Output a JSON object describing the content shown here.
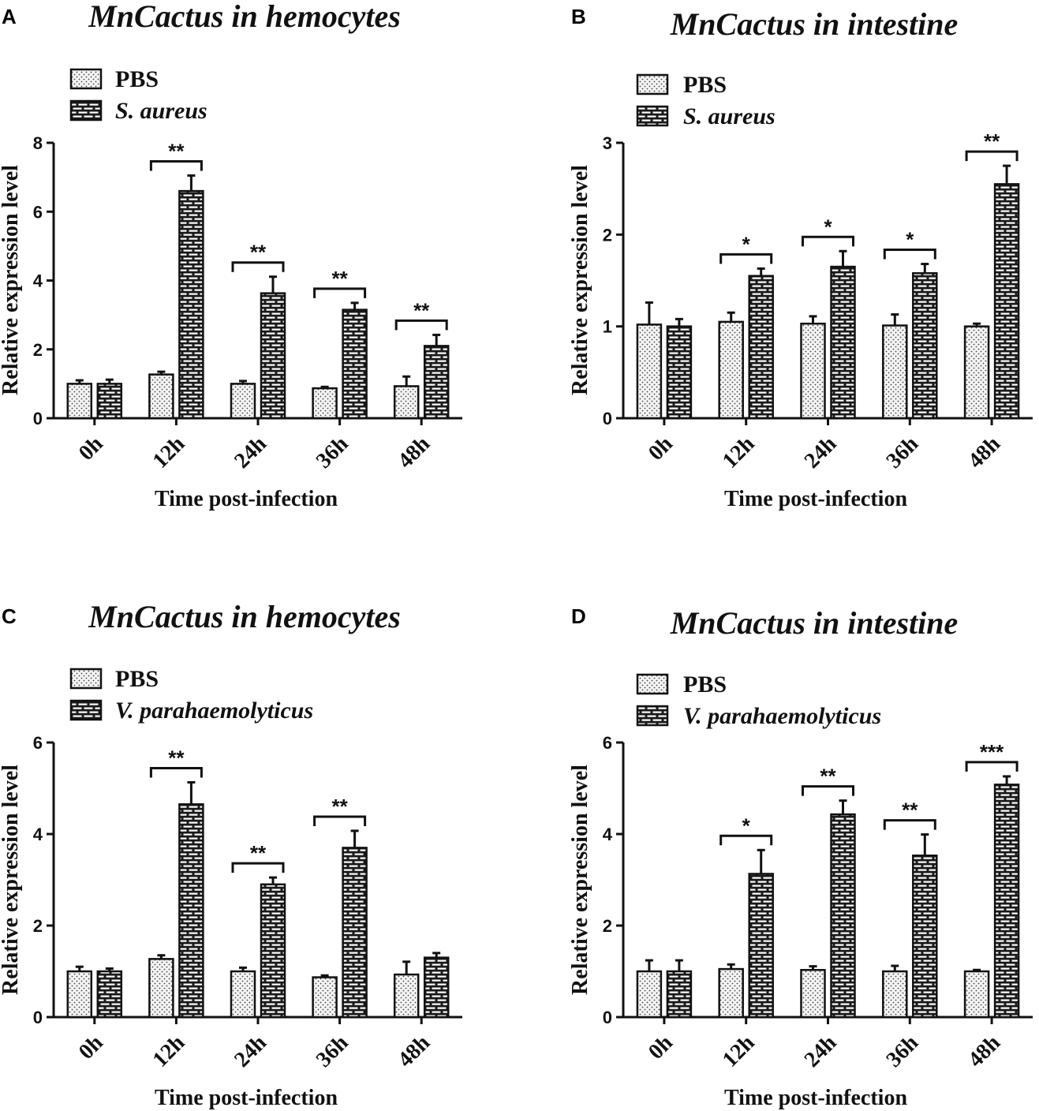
{
  "figure_colors": {
    "ink": "#111111",
    "pbs_fill": "#f2f2f2",
    "treated_fill": "#1a1a1a"
  },
  "chart_data": [
    {
      "panel": "A",
      "type": "bar",
      "title": "MnCactus in hemocytes",
      "xlabel": "Time post-infection",
      "ylabel": "Relative expression level",
      "categories": [
        "0h",
        "12h",
        "24h",
        "36h",
        "48h"
      ],
      "ylim": [
        0,
        8
      ],
      "yticks": [
        "0",
        "2",
        "4",
        "6",
        "8"
      ],
      "legend": [
        "PBS",
        "S. aureus"
      ],
      "series": [
        {
          "name": "PBS",
          "values": [
            1.0,
            1.27,
            1.0,
            0.87,
            0.93
          ],
          "errors": [
            0.1,
            0.08,
            0.08,
            0.04,
            0.28
          ]
        },
        {
          "name": "S. aureus",
          "values": [
            1.0,
            6.6,
            3.63,
            3.15,
            2.1
          ],
          "errors": [
            0.12,
            0.45,
            0.48,
            0.2,
            0.32
          ]
        }
      ],
      "significance": [
        "",
        "**",
        "**",
        "**",
        "**"
      ]
    },
    {
      "panel": "B",
      "type": "bar",
      "title": "MnCactus in intestine",
      "xlabel": "Time post-infection",
      "ylabel": "Relative expression level",
      "categories": [
        "0h",
        "12h",
        "24h",
        "36h",
        "48h"
      ],
      "ylim": [
        0,
        3
      ],
      "yticks": [
        "0",
        "1",
        "2",
        "3"
      ],
      "legend": [
        "PBS",
        "S. aureus"
      ],
      "series": [
        {
          "name": "PBS",
          "values": [
            1.02,
            1.05,
            1.03,
            1.01,
            1.0
          ],
          "errors": [
            0.24,
            0.1,
            0.08,
            0.12,
            0.03
          ]
        },
        {
          "name": "S. aureus",
          "values": [
            1.0,
            1.55,
            1.65,
            1.58,
            2.55
          ],
          "errors": [
            0.08,
            0.08,
            0.17,
            0.1,
            0.2
          ]
        }
      ],
      "significance": [
        "",
        "*",
        "*",
        "*",
        "**"
      ]
    },
    {
      "panel": "C",
      "type": "bar",
      "title": "MnCactus in hemocytes",
      "xlabel": "Time post-infection",
      "ylabel": "Relative expression level",
      "categories": [
        "0h",
        "12h",
        "24h",
        "36h",
        "48h"
      ],
      "ylim": [
        0,
        6
      ],
      "yticks": [
        "0",
        "2",
        "4",
        "6"
      ],
      "legend": [
        "PBS",
        "V. parahaemolyticus"
      ],
      "series": [
        {
          "name": "PBS",
          "values": [
            1.0,
            1.27,
            1.0,
            0.87,
            0.93
          ],
          "errors": [
            0.1,
            0.08,
            0.08,
            0.04,
            0.28
          ]
        },
        {
          "name": "V. parahaemolyticus",
          "values": [
            1.0,
            4.65,
            2.9,
            3.7,
            1.3
          ],
          "errors": [
            0.06,
            0.48,
            0.15,
            0.37,
            0.1
          ]
        }
      ],
      "significance": [
        "",
        "**",
        "**",
        "**",
        ""
      ]
    },
    {
      "panel": "D",
      "type": "bar",
      "title": "MnCactus in intestine",
      "xlabel": "Time post-infection",
      "ylabel": "Relative expression level",
      "categories": [
        "0h",
        "12h",
        "24h",
        "36h",
        "48h"
      ],
      "ylim": [
        0,
        6
      ],
      "yticks": [
        "0",
        "2",
        "4",
        "6"
      ],
      "legend": [
        "PBS",
        "V. parahaemolyticus"
      ],
      "series": [
        {
          "name": "PBS",
          "values": [
            1.0,
            1.05,
            1.03,
            1.0,
            1.0
          ],
          "errors": [
            0.24,
            0.1,
            0.08,
            0.12,
            0.03
          ]
        },
        {
          "name": "V. parahaemolyticus",
          "values": [
            1.0,
            3.13,
            4.43,
            3.53,
            5.08
          ],
          "errors": [
            0.24,
            0.52,
            0.3,
            0.46,
            0.18
          ]
        }
      ],
      "significance": [
        "",
        "*",
        "**",
        "**",
        "***"
      ]
    }
  ]
}
